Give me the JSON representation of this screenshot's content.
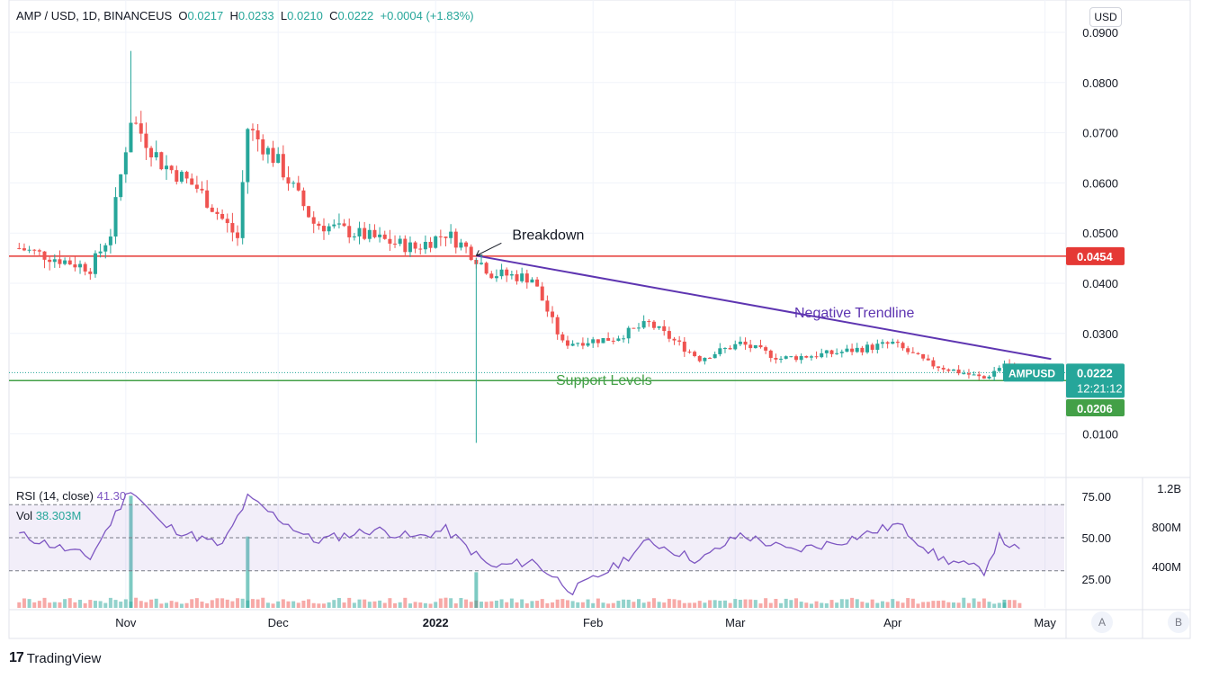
{
  "header": {
    "symbol": "AMP / USD, 1D, BINANCEUS",
    "open_label": "O",
    "open": "0.0217",
    "high_label": "H",
    "high": "0.0233",
    "low_label": "L",
    "low": "0.0210",
    "close_label": "C",
    "close": "0.0222",
    "change": "+0.0004 (+1.83%)"
  },
  "currency_button": "USD",
  "indicators": {
    "rsi_label": "RSI (14, close)",
    "rsi_value": "41.30",
    "vol_label": "Vol",
    "vol_value": "38.303M"
  },
  "axis_buttons": {
    "a": "A",
    "b": "B"
  },
  "branding": {
    "logo": "17",
    "name": "TradingView"
  },
  "colors": {
    "up": "#26a69a",
    "down": "#ef5350",
    "resistance": "#e53935",
    "support": "#43a047",
    "trendline": "#5e35b1",
    "rsi": "#7e57c2"
  },
  "chart_data": {
    "type": "candlestick",
    "symbol": "AMPUSD",
    "price_axis": {
      "ticks": [
        "0.0900",
        "0.0800",
        "0.0700",
        "0.0600",
        "0.0500",
        "0.0400",
        "0.0300",
        "0.0100"
      ],
      "range": [
        0.0,
        0.0935
      ]
    },
    "x_axis": {
      "ticks": [
        "Nov",
        "Dec",
        "2022",
        "Feb",
        "Mar",
        "Apr",
        "May"
      ]
    },
    "price_tags": {
      "last": "0.0222",
      "last_symbol": "AMPUSD",
      "countdown": "12:21:12",
      "resistance": "0.0454",
      "support": "0.0206"
    },
    "resistance_level": 0.0454,
    "support_level": 0.0206,
    "trendline": {
      "start": [
        "2022-01-09",
        0.0455
      ],
      "end": [
        "2022-04-26",
        0.0249
      ]
    },
    "annotations": [
      {
        "text": "Breakdown",
        "date": "2022-01-09",
        "price": 0.0455
      },
      {
        "text": "Negative Trendline"
      },
      {
        "text": "Support Levels"
      }
    ],
    "rsi_axis": {
      "ticks": [
        "75.00",
        "50.00",
        "25.00"
      ],
      "band": [
        30,
        70
      ]
    },
    "volume_axis": {
      "ticks": [
        "1.2B",
        "800M",
        "400M"
      ]
    },
    "wick_extremes": {
      "high": 0.0863,
      "low": 0.0082
    },
    "candles_close_anchors": [
      [
        "2021-10-11",
        0.047
      ],
      [
        "2021-10-25",
        0.043
      ],
      [
        "2021-10-29",
        0.05
      ],
      [
        "2021-11-02",
        0.073
      ],
      [
        "2021-11-08",
        0.064
      ],
      [
        "2021-11-15",
        0.059
      ],
      [
        "2021-11-23",
        0.049
      ],
      [
        "2021-11-25",
        0.071
      ],
      [
        "2021-12-01",
        0.064
      ],
      [
        "2021-12-08",
        0.052
      ],
      [
        "2021-12-20",
        0.049
      ],
      [
        "2021-12-28",
        0.047
      ],
      [
        "2022-01-03",
        0.05
      ],
      [
        "2022-01-07",
        0.047
      ],
      [
        "2022-01-12",
        0.042
      ],
      [
        "2022-01-20",
        0.041
      ],
      [
        "2022-01-26",
        0.028
      ],
      [
        "2022-02-05",
        0.029
      ],
      [
        "2022-02-12",
        0.032
      ],
      [
        "2022-02-22",
        0.025
      ],
      [
        "2022-03-02",
        0.028
      ],
      [
        "2022-03-10",
        0.025
      ],
      [
        "2022-03-20",
        0.026
      ],
      [
        "2022-04-01",
        0.028
      ],
      [
        "2022-04-08",
        0.024
      ],
      [
        "2022-04-19",
        0.021
      ],
      [
        "2022-04-23",
        0.024
      ],
      [
        "2022-04-26",
        0.0222
      ]
    ],
    "rsi_anchors": [
      [
        "2021-10-11",
        52
      ],
      [
        "2021-10-25",
        38
      ],
      [
        "2021-11-02",
        80
      ],
      [
        "2021-11-08",
        58
      ],
      [
        "2021-11-20",
        45
      ],
      [
        "2021-11-25",
        74
      ],
      [
        "2021-12-08",
        48
      ],
      [
        "2021-12-20",
        55
      ],
      [
        "2021-12-28",
        50
      ],
      [
        "2022-01-03",
        55
      ],
      [
        "2022-01-12",
        32
      ],
      [
        "2022-01-20",
        36
      ],
      [
        "2022-01-28",
        18
      ],
      [
        "2022-02-05",
        32
      ],
      [
        "2022-02-12",
        48
      ],
      [
        "2022-02-22",
        36
      ],
      [
        "2022-03-02",
        52
      ],
      [
        "2022-03-12",
        42
      ],
      [
        "2022-03-22",
        48
      ],
      [
        "2022-04-02",
        58
      ],
      [
        "2022-04-10",
        38
      ],
      [
        "2022-04-19",
        30
      ],
      [
        "2022-04-22",
        50
      ],
      [
        "2022-04-26",
        41.3
      ]
    ],
    "volume_spikes": [
      [
        "2021-11-02",
        1100000000
      ],
      [
        "2021-11-25",
        700000000
      ],
      [
        "2022-01-09",
        350000000
      ],
      [
        "2022-04-23",
        80000000
      ]
    ]
  }
}
